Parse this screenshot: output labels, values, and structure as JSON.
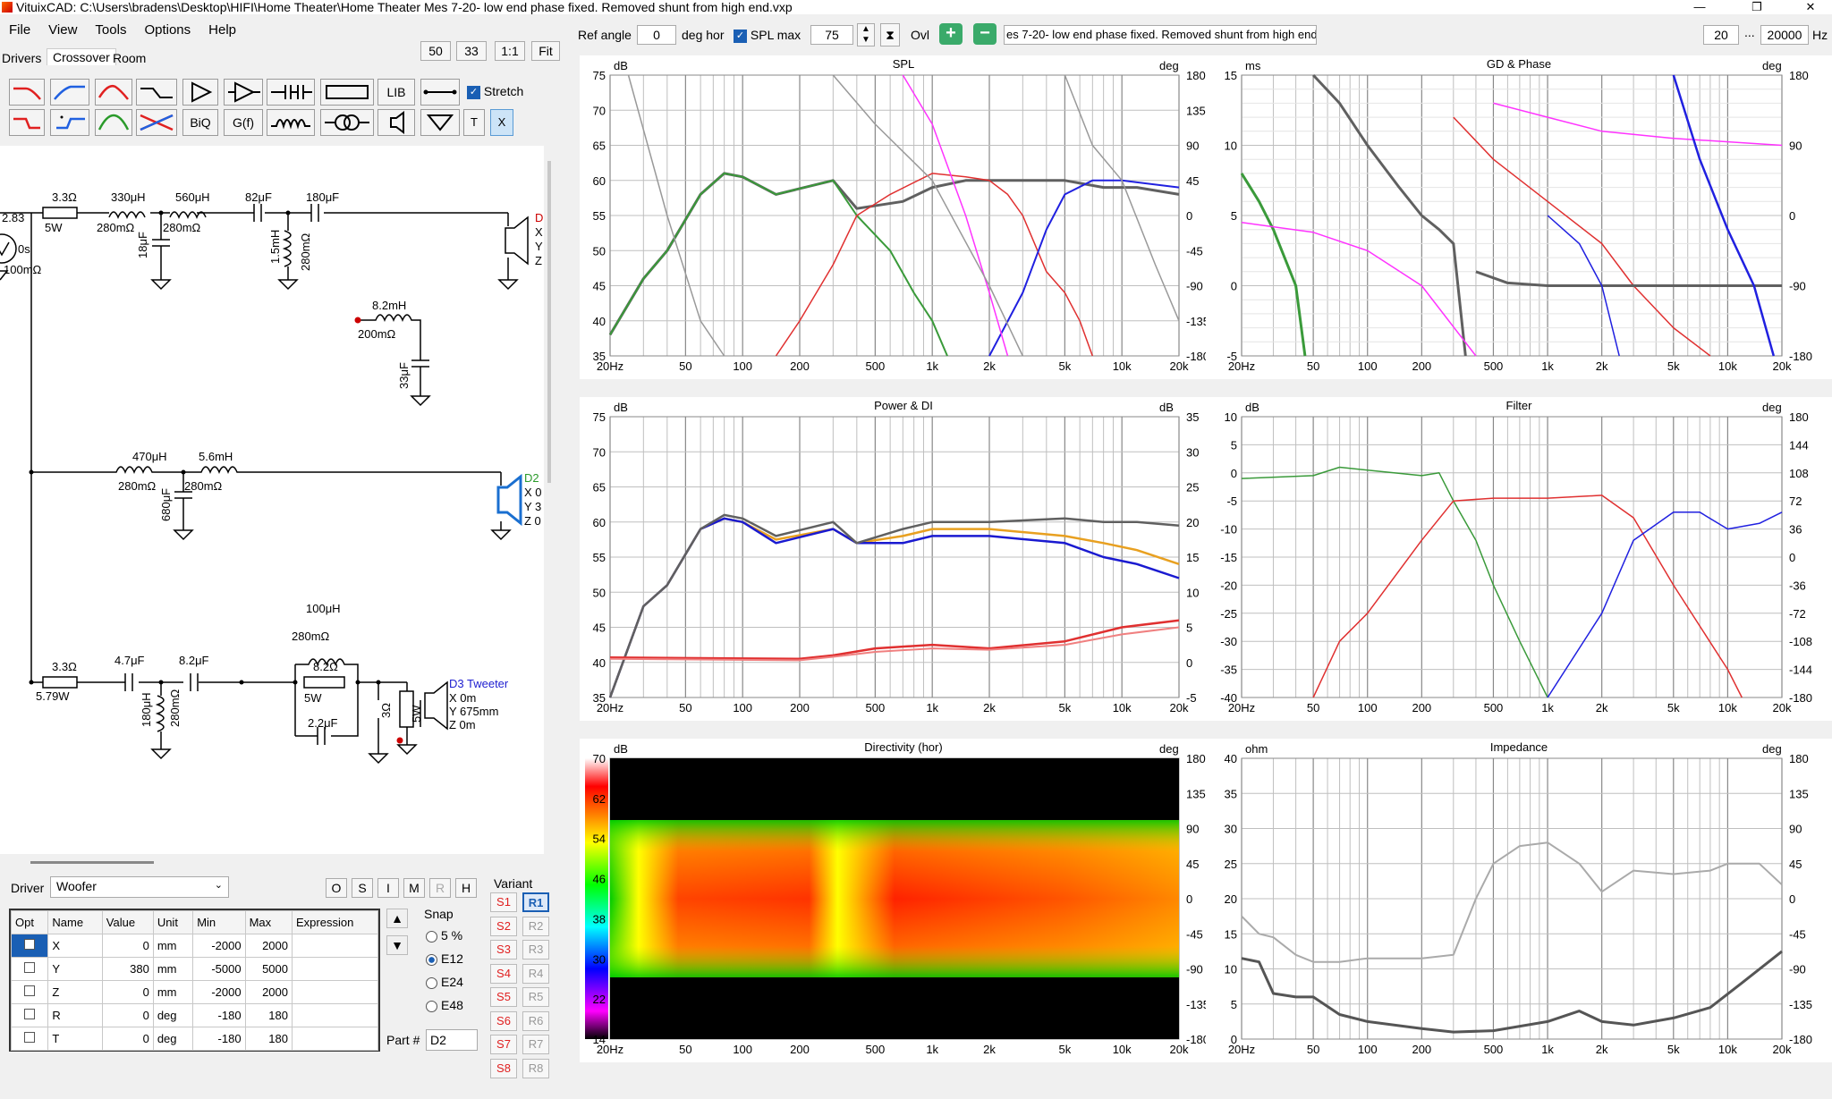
{
  "window": {
    "title": "VituixCAD: C:\\Users\\bradens\\Desktop\\HIFI\\Home Theater\\Home Theater Mes 7-20- low end phase fixed.  Removed shunt from high end.vxp",
    "controls": [
      "—",
      "❐",
      "✕"
    ]
  },
  "menu": [
    "File",
    "View",
    "Tools",
    "Options",
    "Help"
  ],
  "tabs": [
    "Drivers",
    "Crossover",
    "Room"
  ],
  "zoom_buttons": [
    "50",
    "33",
    "1:1",
    "Fit"
  ],
  "toolbar": {
    "lib": "LIB",
    "biq": "BiQ",
    "gf": "G(f)",
    "t": "T",
    "x": "X",
    "stretch": "Stretch"
  },
  "top_controls": {
    "ref_angle_label": "Ref angle",
    "ref_angle": "0",
    "deg_hor": "deg hor",
    "spl_max_label": "SPL max",
    "spl_max": "75",
    "ovl": "Ovl",
    "overlay_name": "es 7-20- low end phase fixed.  Removed shunt from high end",
    "f_min": "20",
    "f_max": "20000",
    "hz": "Hz",
    "dots": "..."
  },
  "schematic": {
    "source": {
      "v": "2.83",
      "delay": "0s",
      "r": "100mΩ"
    },
    "d1": {
      "name": "D",
      "x": "X",
      "y": "Y",
      "z": "Z"
    },
    "woofer": [
      "3.3Ω",
      "5W",
      "330μH",
      "280mΩ",
      "560μH",
      "280mΩ",
      "18μF",
      "82μF",
      "180μF",
      "1.5mH",
      "280mΩ",
      "8.2mH",
      "200mΩ",
      "33μF"
    ],
    "mid": [
      "470μH",
      "280mΩ",
      "5.6mH",
      "280mΩ",
      "680μF"
    ],
    "d2": {
      "name": "D2",
      "x": "X 0",
      "y": "Y 3",
      "z": "Z 0"
    },
    "tweet": [
      "3.3Ω",
      "5.79W",
      "4.7μF",
      "8.2μF",
      "180μH",
      "280mΩ",
      "100μH",
      "280mΩ",
      "8.2Ω",
      "5W",
      "2.2μF",
      "3Ω",
      "5W"
    ],
    "d3": {
      "name": "D3 Tweeter",
      "x": "X 0m",
      "y": "Y 675mm",
      "z": "Z 0m"
    }
  },
  "driver_panel": {
    "label": "Driver",
    "selected": "Woofer",
    "buttons": [
      "O",
      "S",
      "I",
      "M",
      "R",
      "H"
    ],
    "columns": [
      "Opt",
      "Name",
      "Value",
      "Unit",
      "Min",
      "Max",
      "Expression"
    ],
    "rows": [
      [
        "X",
        "0",
        "mm",
        "-2000",
        "2000"
      ],
      [
        "Y",
        "380",
        "mm",
        "-5000",
        "5000"
      ],
      [
        "Z",
        "0",
        "mm",
        "-2000",
        "2000"
      ],
      [
        "R",
        "0",
        "deg",
        "-180",
        "180"
      ],
      [
        "T",
        "0",
        "deg",
        "-180",
        "180"
      ]
    ],
    "snap_label": "Snap",
    "snap_options": [
      "5 %",
      "E12",
      "E24",
      "E48"
    ],
    "snap_selected": "E12",
    "variant_label": "Variant",
    "s_variants": [
      "S1",
      "S2",
      "S3",
      "S4",
      "S5",
      "S6",
      "S7",
      "S8"
    ],
    "r_variants": [
      "R1",
      "R2",
      "R3",
      "R4",
      "R5",
      "R6",
      "R7",
      "R8"
    ],
    "active_variant": "R1",
    "part_label": "Part #",
    "part_value": "D2"
  },
  "freq_ticks": [
    "20Hz",
    "50",
    "100",
    "200",
    "500",
    "1k",
    "2k",
    "5k",
    "10k",
    "20k"
  ],
  "plots": {
    "spl": {
      "title": "SPL",
      "yl_unit": "dB",
      "yr_unit": "deg",
      "yl": [
        "75",
        "70",
        "65",
        "60",
        "55",
        "50",
        "45",
        "40",
        "35"
      ],
      "yr": [
        "180",
        "135",
        "90",
        "45",
        "0",
        "-45",
        "-90",
        "-135",
        "-180"
      ]
    },
    "gd": {
      "title": "GD & Phase",
      "yl_unit": "ms",
      "yr_unit": "deg",
      "yl": [
        "15",
        "10",
        "5",
        "0",
        "-5"
      ],
      "yr": [
        "180",
        "90",
        "0",
        "-90",
        "-180"
      ]
    },
    "power": {
      "title": "Power & DI",
      "yl_unit": "dB",
      "yr_unit": "dB",
      "yl": [
        "75",
        "70",
        "65",
        "60",
        "55",
        "50",
        "45",
        "40",
        "35"
      ],
      "yr": [
        "35",
        "30",
        "25",
        "20",
        "15",
        "10",
        "5",
        "0",
        "-5"
      ]
    },
    "filter": {
      "title": "Filter",
      "yl_unit": "dB",
      "yr_unit": "deg",
      "yl": [
        "10",
        "5",
        "0",
        "-5",
        "-10",
        "-15",
        "-20",
        "-25",
        "-30",
        "-35",
        "-40"
      ],
      "yr": [
        "180",
        "144",
        "108",
        "72",
        "36",
        "0",
        "-36",
        "-72",
        "-108",
        "-144",
        "-180"
      ]
    },
    "dir": {
      "title": "Directivity (hor)",
      "yl_unit": "dB",
      "yr_unit": "deg",
      "scale": [
        "70",
        "62",
        "54",
        "46",
        "38",
        "30",
        "22",
        "14"
      ],
      "yr": [
        "180",
        "135",
        "90",
        "45",
        "0",
        "-45",
        "-90",
        "-135",
        "-180"
      ]
    },
    "imp": {
      "title": "Impedance",
      "yl_unit": "ohm",
      "yr_unit": "deg",
      "yl": [
        "40",
        "35",
        "30",
        "25",
        "20",
        "15",
        "10",
        "5",
        "0"
      ],
      "yr": [
        "180",
        "135",
        "90",
        "45",
        "0",
        "-45",
        "-90",
        "-135",
        "-180"
      ]
    }
  },
  "colors": {
    "woofer": "#3a9a3a",
    "mid": "#e03030",
    "tweeter": "#2020e0",
    "total": "#606060",
    "magenta": "#ff33ff"
  }
}
